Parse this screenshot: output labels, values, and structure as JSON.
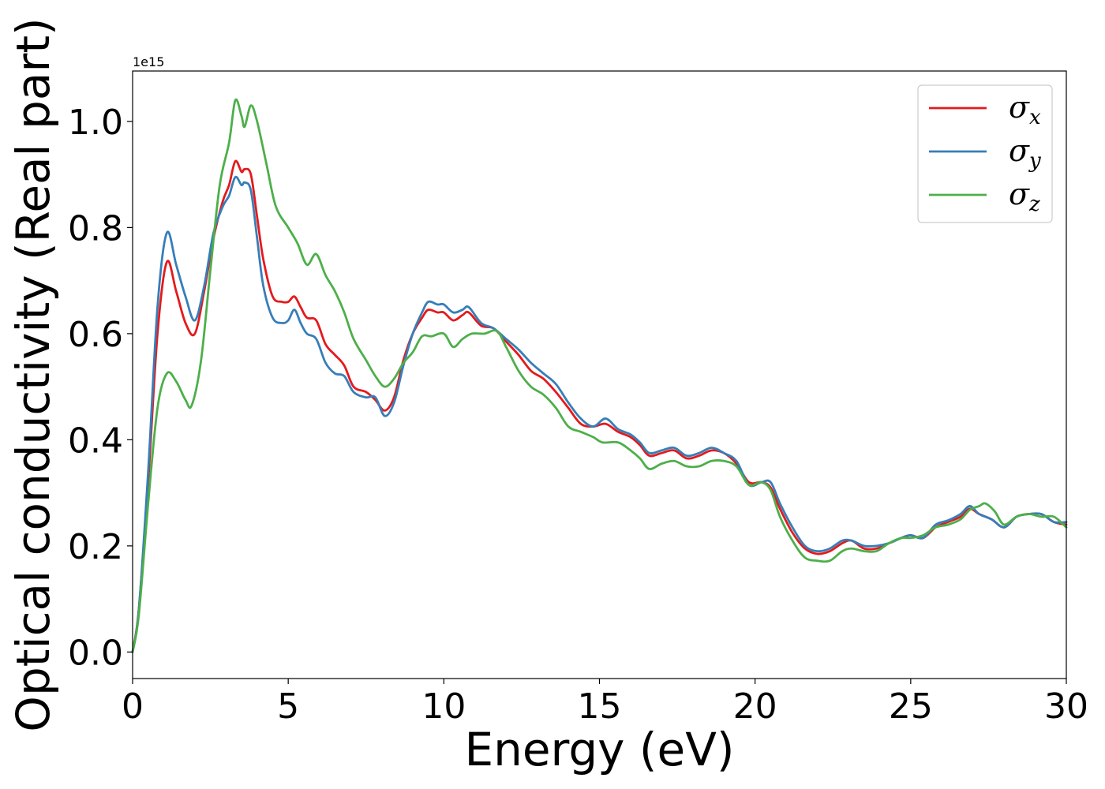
{
  "chart_data": {
    "type": "line",
    "title": "",
    "xlabel": "Energy (eV)",
    "ylabel": "Optical conductivity (Real part)",
    "y_offset_label": "1e15",
    "xlim": [
      0,
      30
    ],
    "ylim": [
      -0.05,
      1.095
    ],
    "x_ticks": [
      0,
      5,
      10,
      15,
      20,
      25,
      30
    ],
    "x_tick_labels": [
      "0",
      "5",
      "10",
      "15",
      "20",
      "25",
      "30"
    ],
    "y_ticks": [
      0.0,
      0.2,
      0.4,
      0.6,
      0.8,
      1.0
    ],
    "y_tick_labels": [
      "0.0",
      "0.2",
      "0.4",
      "0.6",
      "0.8",
      "1.0"
    ],
    "grid": false,
    "legend_position": "top-right",
    "series": [
      {
        "name": "σx",
        "symbol": "σ",
        "subscript": "x",
        "color": "#e41a1c",
        "points": [
          [
            0,
            0
          ],
          [
            0.2,
            0.08
          ],
          [
            0.5,
            0.32
          ],
          [
            0.8,
            0.6
          ],
          [
            1.1,
            0.735
          ],
          [
            1.4,
            0.68
          ],
          [
            1.7,
            0.62
          ],
          [
            2.0,
            0.6
          ],
          [
            2.3,
            0.68
          ],
          [
            2.6,
            0.78
          ],
          [
            2.9,
            0.85
          ],
          [
            3.1,
            0.88
          ],
          [
            3.3,
            0.925
          ],
          [
            3.5,
            0.905
          ],
          [
            3.6,
            0.91
          ],
          [
            3.8,
            0.9
          ],
          [
            4.0,
            0.82
          ],
          [
            4.2,
            0.74
          ],
          [
            4.5,
            0.67
          ],
          [
            4.8,
            0.66
          ],
          [
            5.0,
            0.66
          ],
          [
            5.2,
            0.67
          ],
          [
            5.4,
            0.65
          ],
          [
            5.6,
            0.63
          ],
          [
            5.9,
            0.625
          ],
          [
            6.2,
            0.58
          ],
          [
            6.5,
            0.56
          ],
          [
            6.8,
            0.54
          ],
          [
            7.1,
            0.5
          ],
          [
            7.5,
            0.49
          ],
          [
            7.8,
            0.475
          ],
          [
            8.1,
            0.455
          ],
          [
            8.4,
            0.48
          ],
          [
            8.7,
            0.55
          ],
          [
            9.0,
            0.6
          ],
          [
            9.3,
            0.63
          ],
          [
            9.5,
            0.645
          ],
          [
            9.8,
            0.64
          ],
          [
            10.0,
            0.64
          ],
          [
            10.3,
            0.625
          ],
          [
            10.6,
            0.635
          ],
          [
            10.8,
            0.64
          ],
          [
            11.2,
            0.615
          ],
          [
            11.6,
            0.61
          ],
          [
            12.0,
            0.585
          ],
          [
            12.4,
            0.56
          ],
          [
            12.8,
            0.53
          ],
          [
            13.2,
            0.515
          ],
          [
            13.6,
            0.49
          ],
          [
            14.0,
            0.46
          ],
          [
            14.4,
            0.43
          ],
          [
            14.8,
            0.425
          ],
          [
            15.2,
            0.43
          ],
          [
            15.6,
            0.415
          ],
          [
            16.0,
            0.405
          ],
          [
            16.3,
            0.39
          ],
          [
            16.6,
            0.37
          ],
          [
            17.0,
            0.375
          ],
          [
            17.4,
            0.38
          ],
          [
            17.8,
            0.365
          ],
          [
            18.2,
            0.37
          ],
          [
            18.6,
            0.38
          ],
          [
            19.0,
            0.375
          ],
          [
            19.4,
            0.355
          ],
          [
            19.8,
            0.32
          ],
          [
            20.2,
            0.32
          ],
          [
            20.5,
            0.31
          ],
          [
            20.8,
            0.27
          ],
          [
            21.2,
            0.225
          ],
          [
            21.6,
            0.195
          ],
          [
            22.0,
            0.185
          ],
          [
            22.4,
            0.19
          ],
          [
            22.8,
            0.205
          ],
          [
            23.1,
            0.21
          ],
          [
            23.5,
            0.195
          ],
          [
            23.9,
            0.195
          ],
          [
            24.3,
            0.205
          ],
          [
            24.7,
            0.215
          ],
          [
            25.0,
            0.22
          ],
          [
            25.4,
            0.215
          ],
          [
            25.8,
            0.235
          ],
          [
            26.2,
            0.245
          ],
          [
            26.6,
            0.255
          ],
          [
            26.9,
            0.27
          ],
          [
            27.2,
            0.26
          ],
          [
            27.6,
            0.25
          ],
          [
            28.0,
            0.235
          ],
          [
            28.4,
            0.255
          ],
          [
            28.8,
            0.26
          ],
          [
            29.2,
            0.26
          ],
          [
            29.6,
            0.245
          ],
          [
            30.0,
            0.24
          ]
        ]
      },
      {
        "name": "σy",
        "symbol": "σ",
        "subscript": "y",
        "color": "#377eb8",
        "points": [
          [
            0,
            0
          ],
          [
            0.2,
            0.08
          ],
          [
            0.5,
            0.34
          ],
          [
            0.8,
            0.65
          ],
          [
            1.1,
            0.79
          ],
          [
            1.4,
            0.73
          ],
          [
            1.7,
            0.67
          ],
          [
            2.0,
            0.625
          ],
          [
            2.3,
            0.69
          ],
          [
            2.6,
            0.79
          ],
          [
            2.9,
            0.84
          ],
          [
            3.1,
            0.86
          ],
          [
            3.3,
            0.895
          ],
          [
            3.5,
            0.88
          ],
          [
            3.6,
            0.885
          ],
          [
            3.8,
            0.87
          ],
          [
            4.0,
            0.78
          ],
          [
            4.2,
            0.69
          ],
          [
            4.5,
            0.63
          ],
          [
            4.8,
            0.62
          ],
          [
            5.0,
            0.625
          ],
          [
            5.2,
            0.645
          ],
          [
            5.4,
            0.62
          ],
          [
            5.6,
            0.6
          ],
          [
            5.9,
            0.59
          ],
          [
            6.2,
            0.545
          ],
          [
            6.5,
            0.525
          ],
          [
            6.8,
            0.52
          ],
          [
            7.1,
            0.49
          ],
          [
            7.5,
            0.48
          ],
          [
            7.8,
            0.48
          ],
          [
            8.1,
            0.445
          ],
          [
            8.4,
            0.47
          ],
          [
            8.7,
            0.54
          ],
          [
            9.0,
            0.6
          ],
          [
            9.3,
            0.64
          ],
          [
            9.5,
            0.66
          ],
          [
            9.8,
            0.655
          ],
          [
            10.0,
            0.655
          ],
          [
            10.3,
            0.64
          ],
          [
            10.6,
            0.645
          ],
          [
            10.8,
            0.65
          ],
          [
            11.2,
            0.62
          ],
          [
            11.6,
            0.61
          ],
          [
            12.0,
            0.59
          ],
          [
            12.4,
            0.57
          ],
          [
            12.8,
            0.545
          ],
          [
            13.2,
            0.525
          ],
          [
            13.6,
            0.505
          ],
          [
            14.0,
            0.47
          ],
          [
            14.4,
            0.44
          ],
          [
            14.8,
            0.425
          ],
          [
            15.2,
            0.44
          ],
          [
            15.6,
            0.42
          ],
          [
            16.0,
            0.41
          ],
          [
            16.3,
            0.395
          ],
          [
            16.6,
            0.375
          ],
          [
            17.0,
            0.38
          ],
          [
            17.4,
            0.385
          ],
          [
            17.8,
            0.37
          ],
          [
            18.2,
            0.375
          ],
          [
            18.6,
            0.385
          ],
          [
            19.0,
            0.375
          ],
          [
            19.4,
            0.36
          ],
          [
            19.8,
            0.315
          ],
          [
            20.2,
            0.32
          ],
          [
            20.5,
            0.32
          ],
          [
            20.8,
            0.28
          ],
          [
            21.2,
            0.235
          ],
          [
            21.6,
            0.2
          ],
          [
            22.0,
            0.19
          ],
          [
            22.4,
            0.195
          ],
          [
            22.8,
            0.21
          ],
          [
            23.1,
            0.21
          ],
          [
            23.5,
            0.2
          ],
          [
            23.9,
            0.2
          ],
          [
            24.3,
            0.205
          ],
          [
            24.7,
            0.215
          ],
          [
            25.0,
            0.22
          ],
          [
            25.4,
            0.215
          ],
          [
            25.8,
            0.24
          ],
          [
            26.2,
            0.248
          ],
          [
            26.6,
            0.26
          ],
          [
            26.9,
            0.275
          ],
          [
            27.2,
            0.26
          ],
          [
            27.6,
            0.25
          ],
          [
            28.0,
            0.235
          ],
          [
            28.4,
            0.255
          ],
          [
            28.8,
            0.26
          ],
          [
            29.2,
            0.26
          ],
          [
            29.6,
            0.245
          ],
          [
            30.0,
            0.245
          ]
        ]
      },
      {
        "name": "σz",
        "symbol": "σ",
        "subscript": "z",
        "color": "#4daf4a",
        "points": [
          [
            0,
            0
          ],
          [
            0.2,
            0.07
          ],
          [
            0.5,
            0.28
          ],
          [
            0.8,
            0.46
          ],
          [
            1.1,
            0.525
          ],
          [
            1.4,
            0.51
          ],
          [
            1.7,
            0.475
          ],
          [
            1.9,
            0.465
          ],
          [
            2.2,
            0.55
          ],
          [
            2.5,
            0.72
          ],
          [
            2.8,
            0.88
          ],
          [
            3.1,
            0.96
          ],
          [
            3.3,
            1.04
          ],
          [
            3.5,
            1.01
          ],
          [
            3.6,
            0.99
          ],
          [
            3.8,
            1.03
          ],
          [
            4.0,
            1.0
          ],
          [
            4.3,
            0.92
          ],
          [
            4.6,
            0.84
          ],
          [
            5.0,
            0.8
          ],
          [
            5.3,
            0.77
          ],
          [
            5.6,
            0.73
          ],
          [
            5.9,
            0.75
          ],
          [
            6.2,
            0.71
          ],
          [
            6.5,
            0.68
          ],
          [
            6.8,
            0.64
          ],
          [
            7.1,
            0.59
          ],
          [
            7.5,
            0.55
          ],
          [
            7.8,
            0.52
          ],
          [
            8.1,
            0.5
          ],
          [
            8.4,
            0.515
          ],
          [
            8.7,
            0.545
          ],
          [
            9.0,
            0.565
          ],
          [
            9.3,
            0.595
          ],
          [
            9.6,
            0.595
          ],
          [
            10.0,
            0.6
          ],
          [
            10.3,
            0.575
          ],
          [
            10.6,
            0.59
          ],
          [
            10.9,
            0.6
          ],
          [
            11.3,
            0.6
          ],
          [
            11.7,
            0.605
          ],
          [
            12.0,
            0.575
          ],
          [
            12.4,
            0.53
          ],
          [
            12.8,
            0.5
          ],
          [
            13.2,
            0.485
          ],
          [
            13.6,
            0.46
          ],
          [
            14.0,
            0.425
          ],
          [
            14.4,
            0.415
          ],
          [
            14.8,
            0.405
          ],
          [
            15.1,
            0.395
          ],
          [
            15.6,
            0.395
          ],
          [
            16.0,
            0.38
          ],
          [
            16.3,
            0.365
          ],
          [
            16.6,
            0.345
          ],
          [
            17.0,
            0.355
          ],
          [
            17.4,
            0.36
          ],
          [
            17.8,
            0.35
          ],
          [
            18.2,
            0.35
          ],
          [
            18.6,
            0.36
          ],
          [
            19.0,
            0.36
          ],
          [
            19.4,
            0.35
          ],
          [
            19.8,
            0.315
          ],
          [
            20.2,
            0.32
          ],
          [
            20.5,
            0.305
          ],
          [
            20.8,
            0.255
          ],
          [
            21.2,
            0.21
          ],
          [
            21.6,
            0.178
          ],
          [
            22.0,
            0.172
          ],
          [
            22.4,
            0.172
          ],
          [
            22.8,
            0.19
          ],
          [
            23.1,
            0.195
          ],
          [
            23.5,
            0.19
          ],
          [
            23.9,
            0.19
          ],
          [
            24.3,
            0.205
          ],
          [
            24.7,
            0.215
          ],
          [
            25.0,
            0.215
          ],
          [
            25.4,
            0.22
          ],
          [
            25.8,
            0.235
          ],
          [
            26.2,
            0.24
          ],
          [
            26.6,
            0.25
          ],
          [
            26.9,
            0.268
          ],
          [
            27.2,
            0.275
          ],
          [
            27.4,
            0.28
          ],
          [
            27.7,
            0.265
          ],
          [
            28.0,
            0.24
          ],
          [
            28.4,
            0.255
          ],
          [
            28.8,
            0.26
          ],
          [
            29.2,
            0.255
          ],
          [
            29.6,
            0.255
          ],
          [
            30.0,
            0.235
          ]
        ]
      }
    ]
  }
}
